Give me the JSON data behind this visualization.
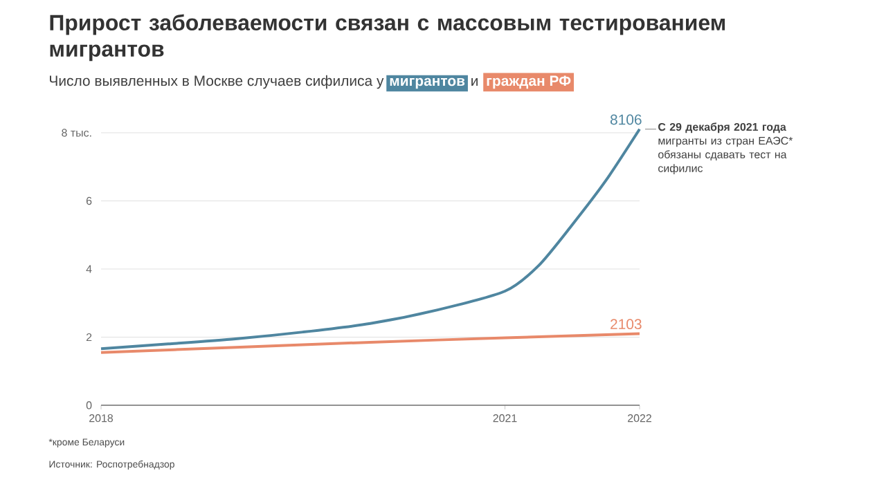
{
  "chart_data": {
    "type": "line",
    "title": "Прирост заболеваемости связан с массовым тестированием мигрантов",
    "subtitle": "Число выявленных в Москве случаев сифилиса у",
    "legend": "top",
    "xlim": [
      2018,
      2022
    ],
    "xticks": [
      2018,
      2021,
      2022
    ],
    "ylim": [
      0,
      8.106
    ],
    "yticks": [
      0,
      2,
      4,
      6,
      {
        "value": 8,
        "label": "8 тыс."
      }
    ],
    "grid": "y",
    "series": [
      {
        "name": "мигрантов",
        "color": "#4f86a0",
        "x": [
          2018,
          2018.5,
          2019,
          2019.5,
          2020,
          2020.5,
          2021,
          2021.25,
          2021.5,
          2021.75,
          2022
        ],
        "values": [
          1.66,
          1.8,
          1.95,
          2.15,
          2.4,
          2.8,
          3.35,
          4.1,
          5.3,
          6.6,
          8.106
        ]
      },
      {
        "name": "граждан РФ",
        "color": "#e8896a",
        "x": [
          2018,
          2019,
          2020,
          2021,
          2022
        ],
        "values": [
          1.55,
          1.7,
          1.85,
          1.98,
          2.103
        ]
      }
    ],
    "annotations": [
      "и",
      "**С 29 декабря 2021 года** мигранты из стран ЕАЭС* обязаны сдавать тест на сифилис",
      {
        "text": "8106",
        "x": 2022,
        "y": 8.106
      },
      {
        "text": "2103",
        "x": 2022,
        "y": 2.103
      },
      "*кроме Беларуси",
      "Источник: Роспотребнадзор"
    ]
  }
}
